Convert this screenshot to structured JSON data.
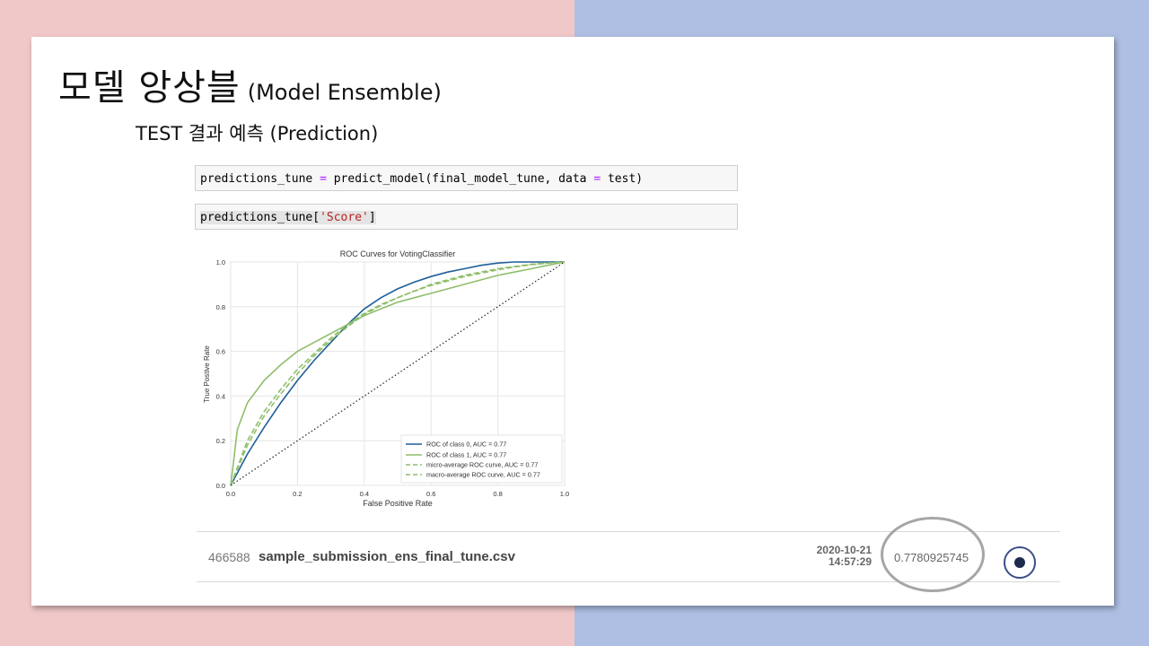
{
  "slide": {
    "title_ko": "모델 앙상블",
    "title_en": "(Model Ensemble)",
    "subtitle": "TEST 결과 예측 (Prediction)"
  },
  "code_cells": {
    "cell1": {
      "var": "predictions_tune",
      "eq1": "=",
      "call": "predict_model(final_model_tune, data",
      "eq2": "=",
      "arg": "test)"
    },
    "cell2": {
      "var": "predictions_tune[",
      "str": "'Score'",
      "close": "]"
    }
  },
  "chart_data": {
    "type": "line",
    "title": "ROC Curves for VotingClassifier",
    "xlabel": "False Positive Rate",
    "ylabel": "True Postive Rate",
    "xlim": [
      0,
      1
    ],
    "ylim": [
      0,
      1
    ],
    "xticks": [
      "0.0",
      "0.2",
      "0.4",
      "0.6",
      "0.8",
      "1.0"
    ],
    "yticks": [
      "0.0",
      "0.2",
      "0.4",
      "0.6",
      "0.8",
      "1.0"
    ],
    "grid": true,
    "legend_position": "bottom-right",
    "series": [
      {
        "name": "ROC of class 0, AUC = 0.77",
        "color": "#1f5f99",
        "dash": false,
        "x": [
          0,
          0.05,
          0.1,
          0.15,
          0.2,
          0.25,
          0.3,
          0.35,
          0.4,
          0.45,
          0.5,
          0.55,
          0.6,
          0.65,
          0.7,
          0.75,
          0.8,
          0.85,
          0.9,
          0.95,
          1.0
        ],
        "y": [
          0,
          0.14,
          0.26,
          0.37,
          0.47,
          0.56,
          0.64,
          0.72,
          0.79,
          0.84,
          0.88,
          0.91,
          0.935,
          0.955,
          0.97,
          0.985,
          0.995,
          1.0,
          1.0,
          1.0,
          1.0
        ]
      },
      {
        "name": "ROC of class 1, AUC = 0.77",
        "color": "#8fbe6a",
        "dash": false,
        "x": [
          0,
          0.02,
          0.05,
          0.1,
          0.15,
          0.2,
          0.25,
          0.3,
          0.35,
          0.4,
          0.45,
          0.5,
          0.55,
          0.6,
          0.65,
          0.7,
          0.75,
          0.8,
          0.85,
          0.9,
          0.95,
          1.0
        ],
        "y": [
          0,
          0.25,
          0.37,
          0.47,
          0.54,
          0.6,
          0.64,
          0.68,
          0.72,
          0.76,
          0.79,
          0.82,
          0.84,
          0.86,
          0.88,
          0.9,
          0.92,
          0.94,
          0.955,
          0.97,
          0.985,
          1.0
        ]
      },
      {
        "name": "micro-average ROC curve, AUC = 0.77",
        "color": "#8fbe6a",
        "dash": true,
        "x": [
          0,
          0.05,
          0.1,
          0.15,
          0.2,
          0.25,
          0.3,
          0.35,
          0.4,
          0.45,
          0.5,
          0.55,
          0.6,
          0.65,
          0.7,
          0.75,
          0.8,
          0.85,
          0.9,
          0.95,
          1.0
        ],
        "y": [
          0,
          0.2,
          0.33,
          0.43,
          0.52,
          0.59,
          0.66,
          0.72,
          0.77,
          0.81,
          0.84,
          0.87,
          0.9,
          0.92,
          0.94,
          0.955,
          0.97,
          0.98,
          0.99,
          0.995,
          1.0
        ]
      },
      {
        "name": "macro-average ROC curve, AUC = 0.77",
        "color": "#8fbe6a",
        "dash": true,
        "x": [
          0,
          0.05,
          0.1,
          0.15,
          0.2,
          0.25,
          0.3,
          0.35,
          0.4,
          0.45,
          0.5,
          0.55,
          0.6,
          0.65,
          0.7,
          0.75,
          0.8,
          0.85,
          0.9,
          0.95,
          1.0
        ],
        "y": [
          0,
          0.18,
          0.31,
          0.41,
          0.5,
          0.58,
          0.65,
          0.71,
          0.765,
          0.805,
          0.84,
          0.87,
          0.895,
          0.915,
          0.935,
          0.95,
          0.965,
          0.978,
          0.988,
          0.995,
          1.0
        ]
      },
      {
        "name": "",
        "color": "#222222",
        "dash": "dotted",
        "x": [
          0,
          1
        ],
        "y": [
          0,
          1
        ]
      }
    ]
  },
  "submission": {
    "id": "466588",
    "filename": "sample_submission_ens_final_tune.csv",
    "date": "2020-10-21",
    "time": "14:57:29",
    "score": "0.7780925745"
  }
}
